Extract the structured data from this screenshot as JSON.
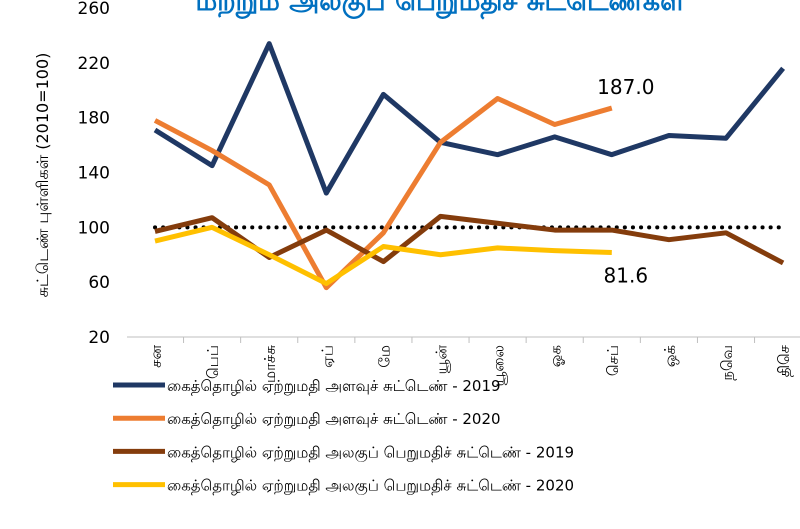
{
  "chart_data": {
    "type": "line",
    "title": "மற்றும் அலகுப் பெறுமதிச் சுட்டெண்கள்",
    "y_label": "சுட்டெண் புள்ளிகள் (2010=100)",
    "categories": [
      "சன",
      "பெப்",
      "மாச்சு",
      "ஏப்",
      "மே",
      "யூன்",
      "யூலை",
      "ஓக",
      "செப்",
      "ஒக்",
      "நவெ",
      "திசெ"
    ],
    "ylim": [
      20,
      260
    ],
    "yticks": [
      20,
      60,
      100,
      140,
      180,
      220,
      260
    ],
    "reference_line": 100,
    "series": [
      {
        "name": "கைத்தொழில் ஏற்றுமதி அளவுச் சுட்டெண் - 2019",
        "color": "#1f3864",
        "values": [
          171,
          145,
          234,
          125,
          197,
          162,
          153,
          166,
          153,
          167,
          165,
          216
        ]
      },
      {
        "name": "கைத்தொழில் ஏற்றுமதி அளவுச் சுட்டெண் - 2020",
        "color": "#ed7d31",
        "values": [
          178,
          156,
          131,
          56,
          96,
          162,
          194,
          175,
          187.0,
          null,
          null,
          null
        ],
        "value_labels": [
          null,
          null,
          null,
          null,
          null,
          null,
          null,
          null,
          "187.0",
          null,
          null,
          null
        ]
      },
      {
        "name": "கைத்தொழில் ஏற்றுமதி அலகுப் பெறுமதிச் சுட்டெண் - 2019",
        "color": "#843c0c",
        "values": [
          97,
          107,
          78,
          98,
          75,
          108,
          103,
          98,
          98,
          91,
          96,
          74
        ]
      },
      {
        "name": "கைத்தொழில் ஏற்றுமதி அலகுப் பெறுமதிச் சுட்டெண் - 2020",
        "color": "#ffc000",
        "values": [
          90,
          100,
          80,
          59,
          86,
          80,
          85,
          83,
          81.6,
          null,
          null,
          null
        ],
        "value_labels": [
          null,
          null,
          null,
          null,
          null,
          null,
          null,
          null,
          "81.6",
          null,
          null,
          null
        ]
      }
    ]
  }
}
